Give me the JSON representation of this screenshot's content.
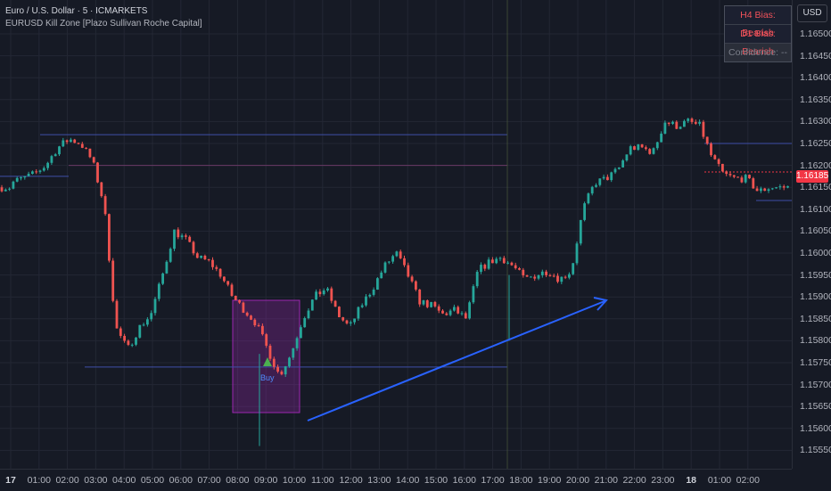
{
  "header": {
    "symbol_line": "Euro / U.S. Dollar · 5 · ICMARKETS",
    "indicator_line": "EURUSD Kill Zone [Plazo Sullivan Roche Capital]"
  },
  "bias_table": {
    "h4": "H4 Bias: Bearish",
    "d1": "D1 Bias: Bearish",
    "confidence": "Confidence: --"
  },
  "price_axis": {
    "currency": "USD",
    "last_price": "1.16185",
    "ticks": [
      "1.16500",
      "1.16450",
      "1.16400",
      "1.16350",
      "1.16300",
      "1.16250",
      "1.16200",
      "1.16150",
      "1.16100",
      "1.16050",
      "1.16000",
      "1.15950",
      "1.15900",
      "1.15850",
      "1.15800",
      "1.15750",
      "1.15700",
      "1.15650",
      "1.15600",
      "1.15550"
    ]
  },
  "time_axis": {
    "ticks": [
      "17",
      "01:00",
      "02:00",
      "03:00",
      "04:00",
      "05:00",
      "06:00",
      "07:00",
      "08:00",
      "09:00",
      "10:00",
      "11:00",
      "12:00",
      "13:00",
      "14:00",
      "15:00",
      "16:00",
      "17:00",
      "18:00",
      "19:00",
      "20:00",
      "21:00",
      "22:00",
      "23:00",
      "18",
      "01:00",
      "02:00"
    ]
  },
  "signal": {
    "label": "Buy"
  },
  "chart_data": {
    "type": "candlestick",
    "symbol": "EURUSD",
    "timeframe": "5",
    "y_range": [
      1.1553,
      1.1654
    ],
    "close_series": [
      [
        0,
        1.1616
      ],
      [
        2,
        1.1618
      ],
      [
        3,
        1.162
      ],
      [
        4,
        1.1624
      ],
      [
        5,
        1.1626
      ],
      [
        6,
        1.1625
      ],
      [
        7,
        1.1621
      ],
      [
        8,
        1.1611
      ],
      [
        9,
        1.1583
      ],
      [
        10,
        1.1578
      ],
      [
        11,
        1.1583
      ],
      [
        12,
        1.1586
      ],
      [
        13,
        1.1595
      ],
      [
        14,
        1.1605
      ],
      [
        15,
        1.1603
      ],
      [
        16,
        1.1599
      ],
      [
        17,
        1.1598
      ],
      [
        18,
        1.1595
      ],
      [
        19,
        1.159
      ],
      [
        20,
        1.1587
      ],
      [
        21,
        1.1584
      ],
      [
        22,
        1.1578
      ],
      [
        23,
        1.1572
      ],
      [
        24,
        1.1577
      ],
      [
        25,
        1.1585
      ],
      [
        26,
        1.159
      ],
      [
        27,
        1.1592
      ],
      [
        28,
        1.1586
      ],
      [
        29,
        1.1583
      ],
      [
        30,
        1.1588
      ],
      [
        31,
        1.1592
      ],
      [
        32,
        1.1597
      ],
      [
        33,
        1.16
      ],
      [
        34,
        1.1595
      ],
      [
        35,
        1.1589
      ],
      [
        36,
        1.1588
      ],
      [
        37,
        1.1586
      ],
      [
        38,
        1.1587
      ],
      [
        39,
        1.1585
      ],
      [
        40,
        1.1596
      ],
      [
        41,
        1.1598
      ],
      [
        42,
        1.1599
      ],
      [
        43,
        1.1597
      ],
      [
        44,
        1.1594
      ],
      [
        45,
        1.1595
      ],
      [
        46,
        1.1596
      ],
      [
        47,
        1.1594
      ],
      [
        48,
        1.1596
      ],
      [
        49,
        1.161
      ],
      [
        50,
        1.1616
      ],
      [
        51,
        1.1617
      ],
      [
        52,
        1.1619
      ],
      [
        53,
        1.1624
      ],
      [
        54,
        1.1624
      ],
      [
        55,
        1.1623
      ],
      [
        56,
        1.163
      ],
      [
        57,
        1.1629
      ],
      [
        58,
        1.163
      ],
      [
        59,
        1.1629
      ],
      [
        60,
        1.1622
      ],
      [
        61,
        1.1618
      ],
      [
        62,
        1.1617
      ],
      [
        63,
        1.1617
      ],
      [
        64,
        1.1614
      ],
      [
        65,
        1.1615
      ]
    ],
    "levels": [
      1.1627,
      1.1625,
      1.162,
      1.16185,
      1.16175,
      1.1612,
      1.1574
    ],
    "annotations": [
      "Buy"
    ]
  }
}
